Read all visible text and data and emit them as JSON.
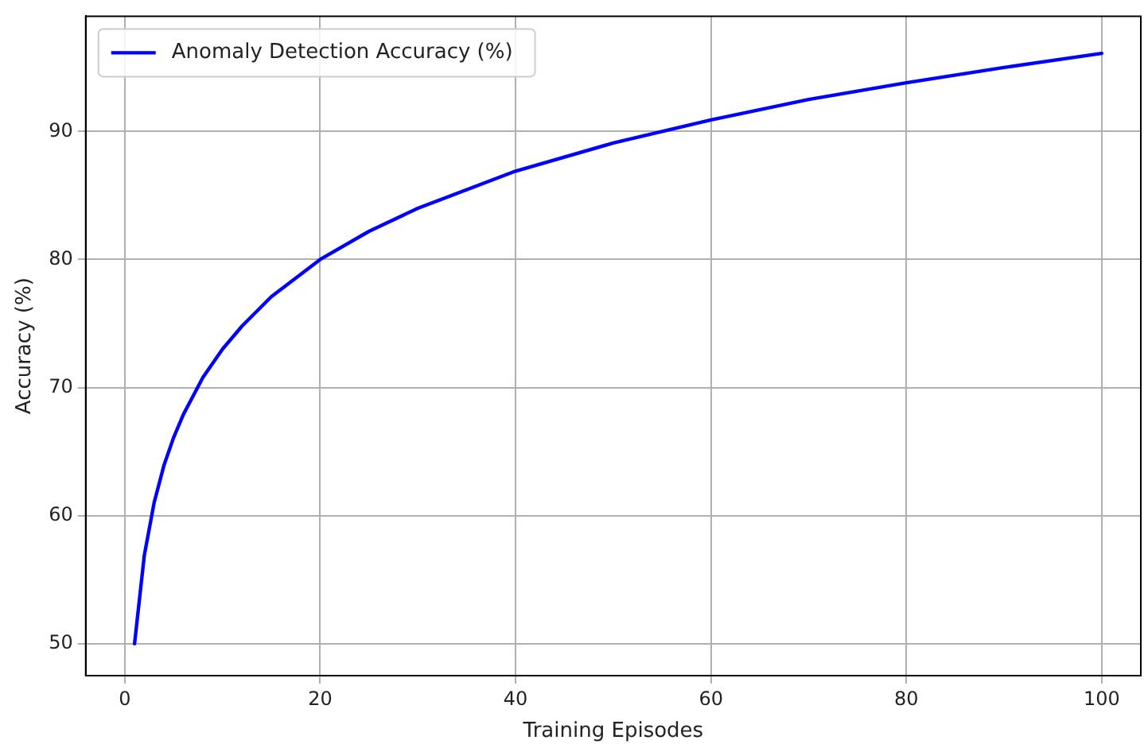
{
  "chart_data": {
    "type": "line",
    "xlabel": "Training Episodes",
    "ylabel": "Accuracy (%)",
    "x": [
      1,
      2,
      3,
      4,
      5,
      6,
      8,
      10,
      12,
      15,
      20,
      25,
      30,
      40,
      50,
      60,
      70,
      80,
      90,
      100
    ],
    "series": [
      {
        "name": "Anomaly Detection Accuracy (%)",
        "color": "#0000ff",
        "values": [
          50,
          56.9,
          61.0,
          63.9,
          66.1,
          67.9,
          70.8,
          73.0,
          74.8,
          77.1,
          80.0,
          82.2,
          84.0,
          86.9,
          89.1,
          90.9,
          92.5,
          93.8,
          95.0,
          96.1
        ]
      }
    ],
    "xlim": [
      -4,
      104
    ],
    "xticks": [
      0,
      20,
      40,
      60,
      80,
      100
    ],
    "ylim": [
      47.5,
      99
    ],
    "yticks": [
      50,
      60,
      70,
      80,
      90
    ],
    "grid": true,
    "legend": "top left",
    "marker": "none",
    "line_style": "solid"
  }
}
